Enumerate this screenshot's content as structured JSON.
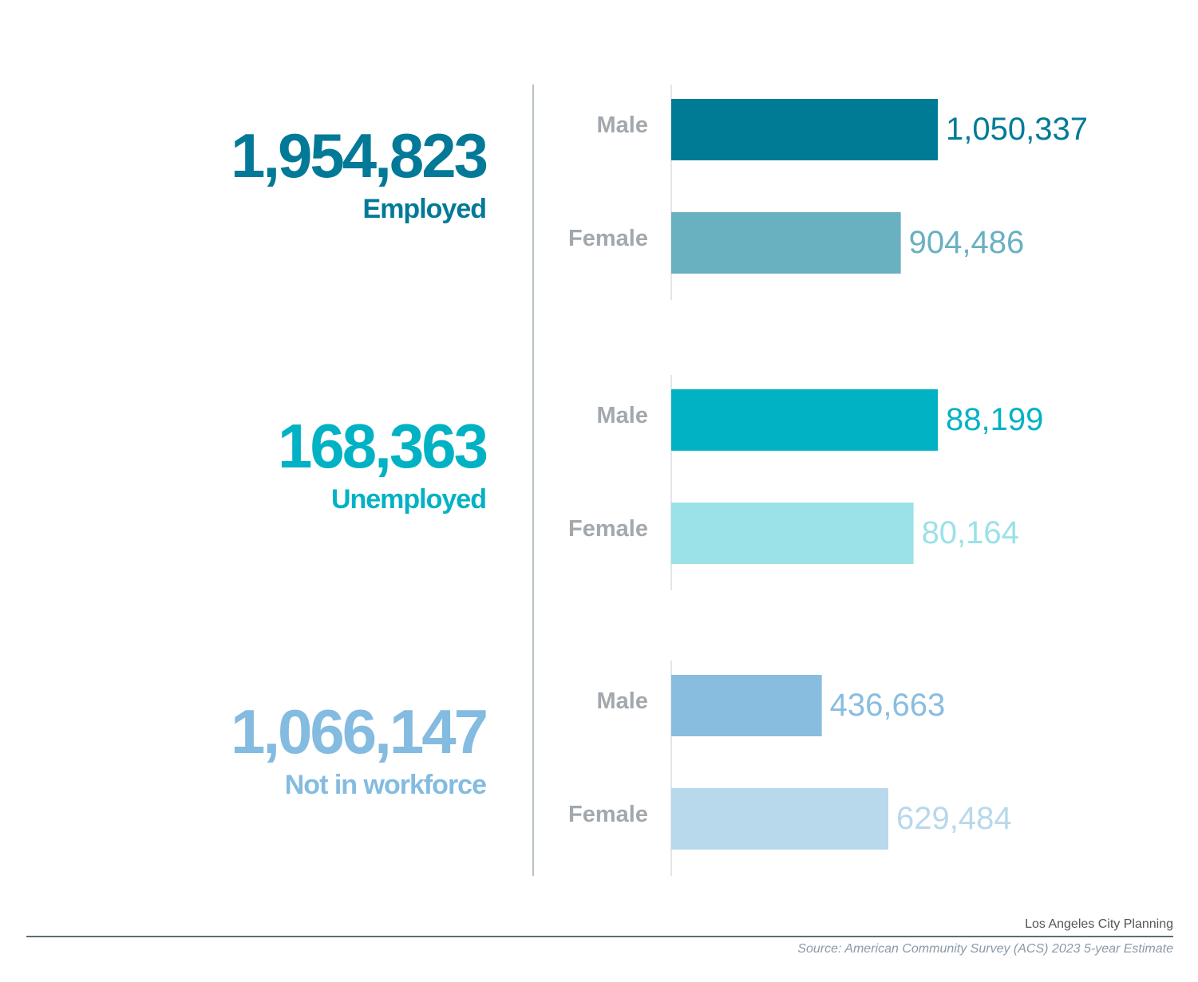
{
  "chart_data": {
    "type": "bar",
    "orientation": "horizontal",
    "groups": [
      {
        "label": "Employed",
        "total": "1,954,823",
        "color": "#027a97",
        "bars": [
          {
            "category": "Male",
            "value": 1050337,
            "value_label": "1,050,337",
            "color": "#007b96"
          },
          {
            "category": "Female",
            "value": 904486,
            "value_label": "904,486",
            "color": "#69b0c1"
          }
        ]
      },
      {
        "label": "Unemployed",
        "total": "168,363",
        "color": "#00b2c4",
        "bars": [
          {
            "category": "Male",
            "value": 88199,
            "value_label": "88,199",
            "color": "#00b2c4"
          },
          {
            "category": "Female",
            "value": 80164,
            "value_label": "80,164",
            "color": "#9be1e8"
          }
        ]
      },
      {
        "label": "Not in workforce",
        "total": "1,066,147",
        "color": "#84bbe0",
        "bars": [
          {
            "category": "Male",
            "value": 436663,
            "value_label": "436,663",
            "color": "#88bde0"
          },
          {
            "category": "Female",
            "value": 629484,
            "value_label": "629,484",
            "color": "#b8d8eb"
          }
        ]
      }
    ],
    "category_label_color": "#a2a8ad"
  },
  "footer": {
    "credit": "Los Angeles City Planning",
    "source": "Source: American Community Survey (ACS) 2023 5-year Estimate"
  }
}
